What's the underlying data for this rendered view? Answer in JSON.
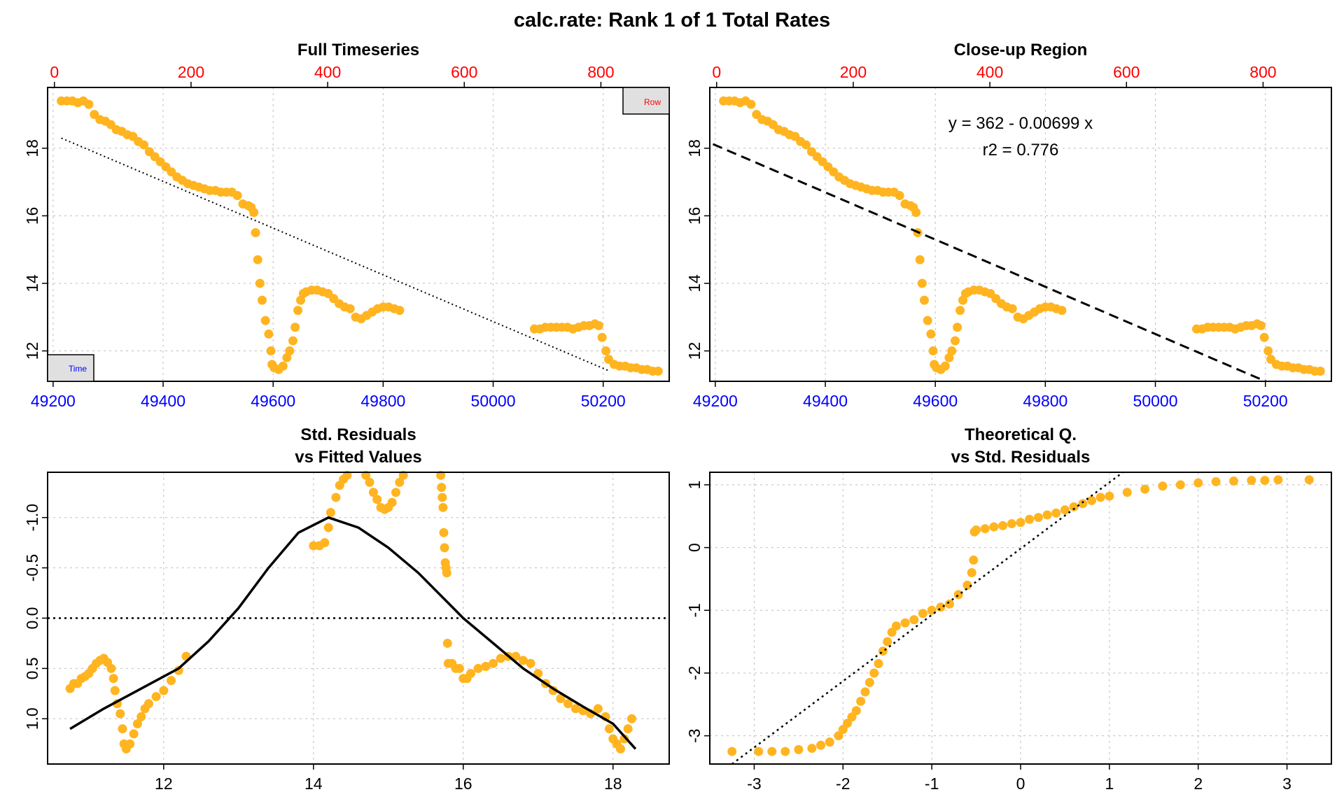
{
  "main_title": "calc.rate: Rank 1 of 1 Total Rates",
  "colors": {
    "points": "#FFB420",
    "time_axis": "#0000FF",
    "row_axis": "#FF0000",
    "grid": "#BEBEBE",
    "line": "#000000",
    "legend_box": "#E0E0E0"
  },
  "chart_data": [
    {
      "id": "full_timeseries",
      "type": "scatter",
      "title": "Full Timeseries",
      "x_ticks": [
        49200,
        49400,
        49600,
        49800,
        50000,
        50200
      ],
      "x_range": [
        49190,
        50320
      ],
      "top_ticks": [
        0,
        200,
        400,
        600,
        800
      ],
      "top_range": [
        -10,
        900
      ],
      "y_ticks": [
        12,
        14,
        16,
        18
      ],
      "y_range": [
        11.1,
        19.8
      ],
      "legend": {
        "time_label": "Time",
        "row_label": "Row"
      },
      "fit_line": {
        "style": "dotted",
        "x": [
          49215,
          50212
        ],
        "y": [
          18.3,
          11.4
        ]
      },
      "points": [
        [
          49215,
          19.4
        ],
        [
          49225,
          19.4
        ],
        [
          49235,
          19.4
        ],
        [
          49245,
          19.35
        ],
        [
          49255,
          19.4
        ],
        [
          49265,
          19.3
        ],
        [
          49275,
          19.0
        ],
        [
          49285,
          18.85
        ],
        [
          49295,
          18.8
        ],
        [
          49305,
          18.7
        ],
        [
          49315,
          18.55
        ],
        [
          49325,
          18.5
        ],
        [
          49335,
          18.4
        ],
        [
          49345,
          18.35
        ],
        [
          49355,
          18.2
        ],
        [
          49365,
          18.1
        ],
        [
          49375,
          17.9
        ],
        [
          49385,
          17.75
        ],
        [
          49395,
          17.6
        ],
        [
          49405,
          17.45
        ],
        [
          49415,
          17.3
        ],
        [
          49425,
          17.15
        ],
        [
          49435,
          17.05
        ],
        [
          49445,
          16.95
        ],
        [
          49455,
          16.9
        ],
        [
          49465,
          16.85
        ],
        [
          49475,
          16.8
        ],
        [
          49485,
          16.75
        ],
        [
          49495,
          16.75
        ],
        [
          49505,
          16.7
        ],
        [
          49515,
          16.7
        ],
        [
          49525,
          16.7
        ],
        [
          49535,
          16.6
        ],
        [
          49545,
          16.35
        ],
        [
          49555,
          16.3
        ],
        [
          49560,
          16.25
        ],
        [
          49565,
          16.1
        ],
        [
          49568,
          15.5
        ],
        [
          49572,
          14.7
        ],
        [
          49576,
          14.0
        ],
        [
          49580,
          13.5
        ],
        [
          49586,
          12.9
        ],
        [
          49592,
          12.5
        ],
        [
          49596,
          12.0
        ],
        [
          49598,
          11.6
        ],
        [
          49602,
          11.5
        ],
        [
          49610,
          11.45
        ],
        [
          49618,
          11.55
        ],
        [
          49625,
          11.8
        ],
        [
          49630,
          12.0
        ],
        [
          49636,
          12.3
        ],
        [
          49640,
          12.7
        ],
        [
          49645,
          13.2
        ],
        [
          49650,
          13.5
        ],
        [
          49655,
          13.7
        ],
        [
          49660,
          13.75
        ],
        [
          49670,
          13.8
        ],
        [
          49680,
          13.8
        ],
        [
          49690,
          13.75
        ],
        [
          49700,
          13.7
        ],
        [
          49710,
          13.55
        ],
        [
          49720,
          13.4
        ],
        [
          49730,
          13.3
        ],
        [
          49740,
          13.25
        ],
        [
          49750,
          13.0
        ],
        [
          49760,
          12.95
        ],
        [
          49770,
          13.05
        ],
        [
          49780,
          13.15
        ],
        [
          49790,
          13.25
        ],
        [
          49800,
          13.3
        ],
        [
          49810,
          13.3
        ],
        [
          49820,
          13.25
        ],
        [
          49830,
          13.2
        ],
        [
          50075,
          12.65
        ],
        [
          50085,
          12.65
        ],
        [
          50095,
          12.7
        ],
        [
          50105,
          12.7
        ],
        [
          50115,
          12.7
        ],
        [
          50125,
          12.7
        ],
        [
          50135,
          12.7
        ],
        [
          50145,
          12.65
        ],
        [
          50155,
          12.7
        ],
        [
          50165,
          12.75
        ],
        [
          50175,
          12.75
        ],
        [
          50185,
          12.8
        ],
        [
          50192,
          12.75
        ],
        [
          50198,
          12.4
        ],
        [
          50205,
          12.0
        ],
        [
          50210,
          11.75
        ],
        [
          50220,
          11.6
        ],
        [
          50230,
          11.55
        ],
        [
          50240,
          11.55
        ],
        [
          50250,
          11.5
        ],
        [
          50260,
          11.5
        ],
        [
          50270,
          11.45
        ],
        [
          50280,
          11.45
        ],
        [
          50290,
          11.4
        ],
        [
          50300,
          11.4
        ]
      ]
    },
    {
      "id": "closeup_region",
      "type": "scatter",
      "title": "Close-up Region",
      "x_ticks": [
        49200,
        49400,
        49600,
        49800,
        50000,
        50200
      ],
      "x_range": [
        49190,
        50320
      ],
      "top_ticks": [
        0,
        200,
        400,
        600,
        800
      ],
      "top_range": [
        -10,
        900
      ],
      "y_ticks": [
        12,
        14,
        16,
        18
      ],
      "y_range": [
        11.1,
        19.8
      ],
      "annotation": [
        "y = 362 - 0.00699 x",
        "r2 = 0.776"
      ],
      "fit": {
        "intercept": 362,
        "slope": -0.00699,
        "style": "dashed"
      }
    },
    {
      "id": "residuals_vs_fitted",
      "type": "scatter",
      "title": [
        "Std. Residuals",
        "vs Fitted Values"
      ],
      "x_ticks": [
        12,
        14,
        16,
        18
      ],
      "x_range": [
        10.45,
        18.75
      ],
      "y_ticks": [
        -1.0,
        -0.5,
        0.0,
        0.5,
        1.0
      ],
      "y_tick_labels": [
        "-1.0",
        "-0.5",
        "0.0",
        "0.5",
        "1.0"
      ],
      "y_range": [
        -1.45,
        1.45
      ],
      "y_reversed": true,
      "zero_line": "dotted",
      "smooth": {
        "x": [
          10.75,
          11.2,
          11.7,
          12.2,
          12.6,
          13.0,
          13.4,
          13.8,
          14.2,
          14.6,
          15.0,
          15.4,
          15.8,
          16.0,
          16.4,
          16.8,
          17.2,
          17.6,
          18.0,
          18.3
        ],
        "y": [
          1.1,
          0.9,
          0.7,
          0.5,
          0.23,
          -0.1,
          -0.5,
          -0.85,
          -1.0,
          -0.9,
          -0.7,
          -0.45,
          -0.15,
          0.0,
          0.25,
          0.5,
          0.7,
          0.88,
          1.05,
          1.3
        ]
      },
      "points": [
        [
          10.75,
          0.7
        ],
        [
          10.8,
          0.65
        ],
        [
          10.85,
          0.65
        ],
        [
          10.9,
          0.6
        ],
        [
          10.95,
          0.58
        ],
        [
          11.0,
          0.55
        ],
        [
          11.05,
          0.5
        ],
        [
          11.1,
          0.45
        ],
        [
          11.15,
          0.42
        ],
        [
          11.2,
          0.4
        ],
        [
          11.25,
          0.44
        ],
        [
          11.3,
          0.5
        ],
        [
          11.33,
          0.6
        ],
        [
          11.35,
          0.72
        ],
        [
          11.38,
          0.85
        ],
        [
          11.42,
          0.95
        ],
        [
          11.45,
          1.1
        ],
        [
          11.47,
          1.25
        ],
        [
          11.5,
          1.3
        ],
        [
          11.55,
          1.25
        ],
        [
          11.6,
          1.15
        ],
        [
          11.65,
          1.05
        ],
        [
          11.7,
          0.98
        ],
        [
          11.75,
          0.9
        ],
        [
          11.8,
          0.85
        ],
        [
          11.9,
          0.78
        ],
        [
          12.0,
          0.72
        ],
        [
          12.1,
          0.62
        ],
        [
          12.2,
          0.52
        ],
        [
          12.3,
          0.38
        ],
        [
          14.0,
          -0.72
        ],
        [
          14.08,
          -0.72
        ],
        [
          14.15,
          -0.75
        ],
        [
          14.2,
          -0.9
        ],
        [
          14.23,
          -1.05
        ],
        [
          14.3,
          -1.2
        ],
        [
          14.35,
          -1.32
        ],
        [
          14.4,
          -1.38
        ],
        [
          14.45,
          -1.42
        ],
        [
          14.7,
          -1.42
        ],
        [
          14.75,
          -1.35
        ],
        [
          14.8,
          -1.25
        ],
        [
          14.85,
          -1.18
        ],
        [
          14.9,
          -1.1
        ],
        [
          14.95,
          -1.08
        ],
        [
          15.0,
          -1.1
        ],
        [
          15.05,
          -1.15
        ],
        [
          15.1,
          -1.25
        ],
        [
          15.15,
          -1.35
        ],
        [
          15.2,
          -1.42
        ],
        [
          15.7,
          -1.42
        ],
        [
          15.71,
          -1.3
        ],
        [
          15.72,
          -1.2
        ],
        [
          15.73,
          -1.1
        ],
        [
          15.74,
          -0.85
        ],
        [
          15.75,
          -0.7
        ],
        [
          15.76,
          -0.55
        ],
        [
          15.77,
          -0.5
        ],
        [
          15.78,
          -0.45
        ],
        [
          15.79,
          0.25
        ],
        [
          15.8,
          0.45
        ],
        [
          15.85,
          0.45
        ],
        [
          15.9,
          0.5
        ],
        [
          15.95,
          0.5
        ],
        [
          16.0,
          0.6
        ],
        [
          16.05,
          0.6
        ],
        [
          16.1,
          0.55
        ],
        [
          16.2,
          0.5
        ],
        [
          16.3,
          0.48
        ],
        [
          16.4,
          0.45
        ],
        [
          16.5,
          0.4
        ],
        [
          16.6,
          0.38
        ],
        [
          16.7,
          0.38
        ],
        [
          16.8,
          0.42
        ],
        [
          16.9,
          0.45
        ],
        [
          17.0,
          0.55
        ],
        [
          17.1,
          0.65
        ],
        [
          17.2,
          0.72
        ],
        [
          17.3,
          0.8
        ],
        [
          17.4,
          0.85
        ],
        [
          17.5,
          0.9
        ],
        [
          17.6,
          0.92
        ],
        [
          17.7,
          0.95
        ],
        [
          17.8,
          0.9
        ],
        [
          17.9,
          0.98
        ],
        [
          17.95,
          1.1
        ],
        [
          18.0,
          1.2
        ],
        [
          18.05,
          1.25
        ],
        [
          18.1,
          1.3
        ],
        [
          18.15,
          1.2
        ],
        [
          18.2,
          1.1
        ],
        [
          18.25,
          1.0
        ]
      ]
    },
    {
      "id": "qq_plot",
      "type": "scatter",
      "title": [
        "Theoretical Q.",
        "vs Std. Residuals"
      ],
      "x_ticks": [
        -3,
        -2,
        -1,
        0,
        1,
        2,
        3
      ],
      "x_range": [
        -3.5,
        3.5
      ],
      "y_ticks": [
        -3,
        -2,
        -1,
        0,
        1
      ],
      "y_range": [
        -3.45,
        1.2
      ],
      "ref_line": {
        "style": "dotted",
        "x": [
          -3.25,
          1.2
        ],
        "y": [
          -3.45,
          1.25
        ]
      },
      "points": [
        [
          -3.25,
          -3.25
        ],
        [
          -2.95,
          -3.25
        ],
        [
          -2.8,
          -3.25
        ],
        [
          -2.65,
          -3.25
        ],
        [
          -2.5,
          -3.22
        ],
        [
          -2.35,
          -3.2
        ],
        [
          -2.25,
          -3.15
        ],
        [
          -2.15,
          -3.1
        ],
        [
          -2.05,
          -3.0
        ],
        [
          -2.0,
          -2.9
        ],
        [
          -1.95,
          -2.8
        ],
        [
          -1.9,
          -2.7
        ],
        [
          -1.85,
          -2.6
        ],
        [
          -1.8,
          -2.45
        ],
        [
          -1.75,
          -2.3
        ],
        [
          -1.7,
          -2.15
        ],
        [
          -1.65,
          -2.0
        ],
        [
          -1.6,
          -1.85
        ],
        [
          -1.55,
          -1.65
        ],
        [
          -1.5,
          -1.5
        ],
        [
          -1.45,
          -1.35
        ],
        [
          -1.4,
          -1.25
        ],
        [
          -1.3,
          -1.2
        ],
        [
          -1.2,
          -1.15
        ],
        [
          -1.1,
          -1.05
        ],
        [
          -1.0,
          -1.0
        ],
        [
          -0.9,
          -0.95
        ],
        [
          -0.8,
          -0.9
        ],
        [
          -0.7,
          -0.75
        ],
        [
          -0.6,
          -0.6
        ],
        [
          -0.55,
          -0.4
        ],
        [
          -0.53,
          -0.2
        ],
        [
          -0.52,
          0.25
        ],
        [
          -0.5,
          0.28
        ],
        [
          -0.4,
          0.3
        ],
        [
          -0.3,
          0.33
        ],
        [
          -0.2,
          0.35
        ],
        [
          -0.1,
          0.38
        ],
        [
          0.0,
          0.4
        ],
        [
          0.1,
          0.45
        ],
        [
          0.2,
          0.48
        ],
        [
          0.3,
          0.52
        ],
        [
          0.4,
          0.55
        ],
        [
          0.5,
          0.6
        ],
        [
          0.6,
          0.65
        ],
        [
          0.7,
          0.7
        ],
        [
          0.8,
          0.75
        ],
        [
          0.9,
          0.8
        ],
        [
          1.0,
          0.82
        ],
        [
          1.2,
          0.88
        ],
        [
          1.4,
          0.93
        ],
        [
          1.6,
          0.98
        ],
        [
          1.8,
          1.0
        ],
        [
          2.0,
          1.03
        ],
        [
          2.2,
          1.05
        ],
        [
          2.4,
          1.06
        ],
        [
          2.6,
          1.07
        ],
        [
          2.75,
          1.07
        ],
        [
          2.9,
          1.08
        ],
        [
          3.25,
          1.08
        ]
      ]
    }
  ]
}
